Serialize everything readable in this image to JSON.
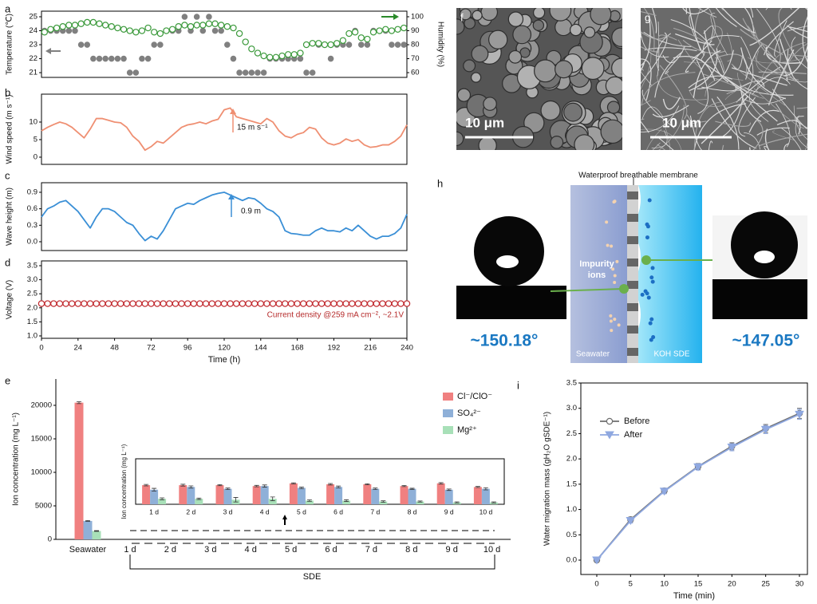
{
  "chart_data": [
    {
      "type": "scatter",
      "ylabel": "Temperature (℃)",
      "y2label": "Humidity (%)",
      "x": [
        2,
        6,
        10,
        14,
        18,
        22,
        26,
        30,
        34,
        38,
        42,
        46,
        50,
        54,
        58,
        62,
        66,
        70,
        74,
        78,
        82,
        86,
        90,
        94,
        98,
        102,
        106,
        110,
        114,
        118,
        122,
        126,
        130,
        134,
        138,
        142,
        146,
        150,
        154,
        158,
        162,
        166,
        170,
        174,
        178,
        182,
        186,
        190,
        194,
        198,
        202,
        206,
        210,
        214,
        218,
        222,
        226,
        230,
        234,
        238
      ],
      "xlim": [
        0,
        240
      ],
      "ylim": [
        20.66,
        25.4
      ],
      "yticks": [
        21,
        22,
        23,
        24,
        25
      ],
      "y2lim": [
        56.6,
        104
      ],
      "y2ticks": [
        60,
        70,
        80,
        90,
        100
      ],
      "series": [
        {
          "color": "#808080",
          "marker": "circle-filled",
          "values": [
            24,
            24,
            24,
            24,
            24,
            24,
            23,
            23,
            22,
            22,
            22,
            22,
            22,
            22,
            21,
            21,
            22,
            22,
            23,
            23,
            24,
            24,
            24,
            25,
            24,
            25,
            24,
            25,
            24,
            24,
            23,
            22,
            21,
            21,
            21,
            21,
            21,
            22,
            22,
            22,
            22,
            22,
            22,
            21,
            21,
            23,
            23,
            22,
            23,
            23,
            23,
            24,
            23,
            23,
            24,
            24,
            24,
            23,
            23,
            23
          ]
        },
        {
          "color": "#3c9a3c",
          "marker": "circle-open",
          "axis": "y2",
          "values": [
            89,
            91,
            92,
            93,
            94,
            94,
            95,
            96,
            96,
            95,
            94,
            93,
            92,
            91,
            90,
            89,
            90,
            92,
            89,
            88,
            90,
            91,
            93,
            94,
            93,
            94,
            94,
            95,
            95,
            94,
            93,
            92,
            88,
            82,
            77,
            74,
            72,
            71,
            71,
            72,
            73,
            73,
            74,
            80,
            81,
            81,
            80,
            80,
            81,
            83,
            88,
            89,
            85,
            84,
            89,
            90,
            91,
            90,
            91,
            92
          ]
        }
      ]
    },
    {
      "type": "line",
      "ylabel": "Wind speed (m s⁻¹)",
      "annotation": "15 m s⁻¹",
      "x": [
        0,
        4,
        8,
        12,
        16,
        20,
        24,
        28,
        32,
        36,
        40,
        44,
        48,
        52,
        56,
        60,
        64,
        68,
        72,
        76,
        80,
        84,
        88,
        92,
        96,
        100,
        104,
        108,
        112,
        116,
        120,
        124,
        128,
        132,
        136,
        140,
        144,
        148,
        152,
        156,
        160,
        164,
        168,
        172,
        176,
        180,
        184,
        188,
        192,
        196,
        200,
        204,
        208,
        212,
        216,
        220,
        224,
        228,
        232,
        236,
        240
      ],
      "xlim": [
        0,
        240
      ],
      "ylim": [
        -2.05,
        17.95
      ],
      "yticks": [
        0,
        5,
        10
      ],
      "series": [
        {
          "color": "#ef8f72",
          "values": [
            7.5,
            8.5,
            9.3,
            10,
            9.5,
            8.5,
            7,
            5.5,
            8,
            11,
            11,
            10.5,
            10,
            9.8,
            8.5,
            6,
            4.5,
            2,
            3,
            4.5,
            4,
            5.5,
            7,
            8.5,
            9.2,
            9.5,
            10,
            9.5,
            10.3,
            10.8,
            13.5,
            14,
            11.5,
            11,
            10.5,
            10,
            9.5,
            11,
            10,
            7.5,
            6,
            5.5,
            6.5,
            7,
            8.5,
            8,
            5.5,
            4,
            3.5,
            4,
            5.2,
            4.5,
            5,
            3.5,
            2.8,
            3,
            3.5,
            3.5,
            4.5,
            6,
            9.2
          ]
        }
      ]
    },
    {
      "type": "line",
      "ylabel": "Wave height (m)",
      "annotation": "0.9 m",
      "x": [
        0,
        4,
        8,
        12,
        16,
        20,
        24,
        28,
        32,
        36,
        40,
        44,
        48,
        52,
        56,
        60,
        64,
        68,
        72,
        76,
        80,
        84,
        88,
        92,
        96,
        100,
        104,
        108,
        112,
        116,
        120,
        124,
        128,
        132,
        136,
        140,
        144,
        148,
        152,
        156,
        160,
        164,
        168,
        172,
        176,
        180,
        184,
        188,
        192,
        196,
        200,
        204,
        208,
        212,
        216,
        220,
        224,
        228,
        232,
        236,
        240
      ],
      "xlim": [
        0,
        240
      ],
      "ylim": [
        -0.16,
        1.074
      ],
      "yticks": [
        {
          "value": 0,
          "label": "0.0"
        },
        0.3,
        0.6,
        0.9
      ],
      "series": [
        {
          "color": "#3a8fd6",
          "values": [
            0.45,
            0.6,
            0.65,
            0.72,
            0.75,
            0.65,
            0.55,
            0.4,
            0.25,
            0.45,
            0.6,
            0.6,
            0.55,
            0.45,
            0.35,
            0.3,
            0.15,
            0.02,
            0.1,
            0.05,
            0.2,
            0.4,
            0.6,
            0.65,
            0.7,
            0.68,
            0.75,
            0.8,
            0.85,
            0.88,
            0.9,
            0.85,
            0.8,
            0.75,
            0.8,
            0.78,
            0.7,
            0.6,
            0.55,
            0.45,
            0.2,
            0.15,
            0.14,
            0.12,
            0.12,
            0.2,
            0.25,
            0.2,
            0.2,
            0.18,
            0.25,
            0.2,
            0.3,
            0.2,
            0.1,
            0.05,
            0.1,
            0.1,
            0.15,
            0.25,
            0.5
          ]
        }
      ]
    },
    {
      "type": "scatter",
      "ylabel": "Voltage (V)",
      "xlabel": "Time (h)",
      "annotation": "Current density @259 mA cm⁻²,  ~2.1V",
      "x": [
        0,
        4,
        8,
        12,
        16,
        20,
        24,
        28,
        32,
        36,
        40,
        44,
        48,
        52,
        56,
        60,
        64,
        68,
        72,
        76,
        80,
        84,
        88,
        92,
        96,
        100,
        104,
        108,
        112,
        116,
        120,
        124,
        128,
        132,
        136,
        140,
        144,
        148,
        152,
        156,
        160,
        164,
        168,
        172,
        176,
        180,
        184,
        188,
        192,
        196,
        200,
        204,
        208,
        212,
        216,
        220,
        224,
        228,
        232,
        236,
        240
      ],
      "xlim": [
        0,
        240
      ],
      "xticks": [
        0,
        24,
        48,
        72,
        96,
        120,
        144,
        168,
        192,
        216,
        240
      ],
      "ylim": [
        0.915,
        3.67
      ],
      "yticks": [
        {
          "value": 1,
          "label": "1.0"
        },
        1.5,
        {
          "value": 2,
          "label": "2.0"
        },
        2.5,
        {
          "value": 3,
          "label": "3.0"
        },
        3.5
      ],
      "series": [
        {
          "color": "#c0282d",
          "marker": "circle-open",
          "values": [
            2.15,
            2.15,
            2.15,
            2.15,
            2.15,
            2.15,
            2.15,
            2.15,
            2.15,
            2.15,
            2.15,
            2.15,
            2.15,
            2.15,
            2.15,
            2.15,
            2.15,
            2.15,
            2.15,
            2.15,
            2.15,
            2.15,
            2.15,
            2.15,
            2.15,
            2.15,
            2.15,
            2.15,
            2.15,
            2.15,
            2.15,
            2.15,
            2.15,
            2.15,
            2.15,
            2.15,
            2.15,
            2.15,
            2.15,
            2.15,
            2.15,
            2.15,
            2.15,
            2.15,
            2.15,
            2.15,
            2.15,
            2.15,
            2.15,
            2.15,
            2.15,
            2.15,
            2.15,
            2.15,
            2.15,
            2.15,
            2.15,
            2.15,
            2.15,
            2.15,
            2.15
          ]
        }
      ]
    },
    {
      "type": "bar",
      "ylabel": "Ion concentration (mg L⁻¹)",
      "group_label": "SDE",
      "categories": [
        "Seawater",
        "1 d",
        "2 d",
        "3 d",
        "4 d",
        "5 d",
        "6 d",
        "7 d",
        "8 d",
        "9 d",
        "10 d"
      ],
      "ylim": [
        0,
        23929
      ],
      "yticks": [
        0,
        5000,
        10000,
        15000,
        20000
      ],
      "series": [
        {
          "name": "Cl⁻/ClO⁻",
          "color": "#f08080",
          "values": [
            20400,
            null,
            null,
            null,
            null,
            null,
            null,
            null,
            null,
            null,
            null
          ],
          "errors": [
            150,
            null,
            null,
            null,
            null,
            null,
            null,
            null,
            null,
            null,
            null
          ]
        },
        {
          "name": "SO₄²⁻",
          "color": "#8fb0d8",
          "values": [
            2750,
            null,
            null,
            null,
            null,
            null,
            null,
            null,
            null,
            null,
            null
          ],
          "errors": [
            60,
            null,
            null,
            null,
            null,
            null,
            null,
            null,
            null,
            null,
            null
          ]
        },
        {
          "name": "Mg²⁺",
          "color": "#a8e0b8",
          "values": [
            1250,
            null,
            null,
            null,
            null,
            null,
            null,
            null,
            null,
            null,
            null
          ],
          "errors": [
            50,
            null,
            null,
            null,
            null,
            null,
            null,
            null,
            null,
            null,
            null
          ]
        }
      ]
    },
    {
      "type": "bar",
      "ylabel": "Ion concentration (mg L⁻¹)",
      "categories": [
        "1 d",
        "2 d",
        "3 d",
        "4 d",
        "5 d",
        "6 d",
        "7 d",
        "8 d",
        "9 d",
        "10 d"
      ],
      "ylim": [
        0,
        5
      ],
      "series": [
        {
          "color": "#f08080",
          "values": [
            2.1,
            2.1,
            2.1,
            2.0,
            2.3,
            2.2,
            2.2,
            2.0,
            2.3,
            1.9
          ],
          "errors": [
            0.08,
            0.1,
            0.06,
            0.08,
            0.06,
            0.08,
            0.06,
            0.06,
            0.08,
            0.06
          ]
        },
        {
          "color": "#8fb0d8",
          "values": [
            1.6,
            1.9,
            1.7,
            2.0,
            1.8,
            1.9,
            1.7,
            1.7,
            1.6,
            1.7
          ],
          "errors": [
            0.15,
            0.12,
            0.08,
            0.12,
            0.08,
            0.1,
            0.08,
            0.06,
            0.08,
            0.12
          ]
        },
        {
          "color": "#a8e0b8",
          "values": [
            0.6,
            0.6,
            0.5,
            0.6,
            0.4,
            0.4,
            0.3,
            0.3,
            0.2,
            0.2
          ],
          "errors": [
            0.1,
            0.08,
            0.25,
            0.2,
            0.08,
            0.1,
            0.08,
            0.06,
            0.06,
            0.06
          ]
        }
      ]
    },
    {
      "type": "line",
      "ylabel": "Water migration mass (gH₂O gSDE⁻¹)",
      "xlabel": "Time (min)",
      "x": [
        0,
        5,
        10,
        15,
        20,
        25,
        30
      ],
      "xlim": [
        -2.36,
        31.18
      ],
      "xticks": [
        0,
        5,
        10,
        15,
        20,
        25,
        30
      ],
      "ylim": [
        -0.284,
        3.5
      ],
      "yticks": [
        {
          "value": 0,
          "label": "0.0"
        },
        0.5,
        {
          "value": 1,
          "label": "1.0"
        },
        1.5,
        {
          "value": 2,
          "label": "2.0"
        },
        2.5,
        {
          "value": 3,
          "label": "3.0"
        },
        3.5
      ],
      "series": [
        {
          "name": "Before",
          "color": "#6e6e6e",
          "marker": "circle-open",
          "values": [
            0,
            0.8,
            1.37,
            1.85,
            2.25,
            2.6,
            2.9
          ],
          "errors": [
            0.02,
            0.05,
            0.05,
            0.06,
            0.07,
            0.08,
            0.1
          ]
        },
        {
          "name": "After",
          "color": "#8fa8e0",
          "marker": "triangle",
          "values": [
            0,
            0.78,
            1.36,
            1.84,
            2.23,
            2.58,
            2.88
          ],
          "errors": [
            0.02,
            0.05,
            0.05,
            0.06,
            0.07,
            0.08,
            0.1
          ]
        }
      ]
    }
  ],
  "figure": {
    "panel_labels": [
      "a",
      "b",
      "c",
      "d",
      "e",
      "f",
      "g",
      "h",
      "i"
    ],
    "f": {
      "scale_bar": "10 μm"
    },
    "g": {
      "scale_bar": "10 μm"
    },
    "h": {
      "membrane": "Waterproof breathable membrane",
      "ions_1": "Impurity",
      "ions_2": "ions",
      "seawater": "Seawater",
      "electrolyte": "KOH SDE",
      "angle_left": "~150.18°",
      "angle_right": "~147.05°"
    }
  }
}
